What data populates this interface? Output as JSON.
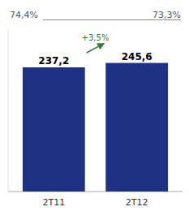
{
  "chart_data": {
    "type": "bar",
    "categories": [
      "2T11",
      "2T12"
    ],
    "values": [
      237.2,
      245.6
    ],
    "value_labels": [
      "237,2",
      "245,6"
    ],
    "data_labels": true,
    "color": "#1e3182",
    "ylim": [
      0,
      310
    ],
    "tick_labels": "x",
    "annotations": [
      {
        "text": "74,4%"
      },
      {
        "text": "73,3%"
      },
      {
        "text": "+3,5%",
        "color": "#2e7d32"
      }
    ]
  }
}
